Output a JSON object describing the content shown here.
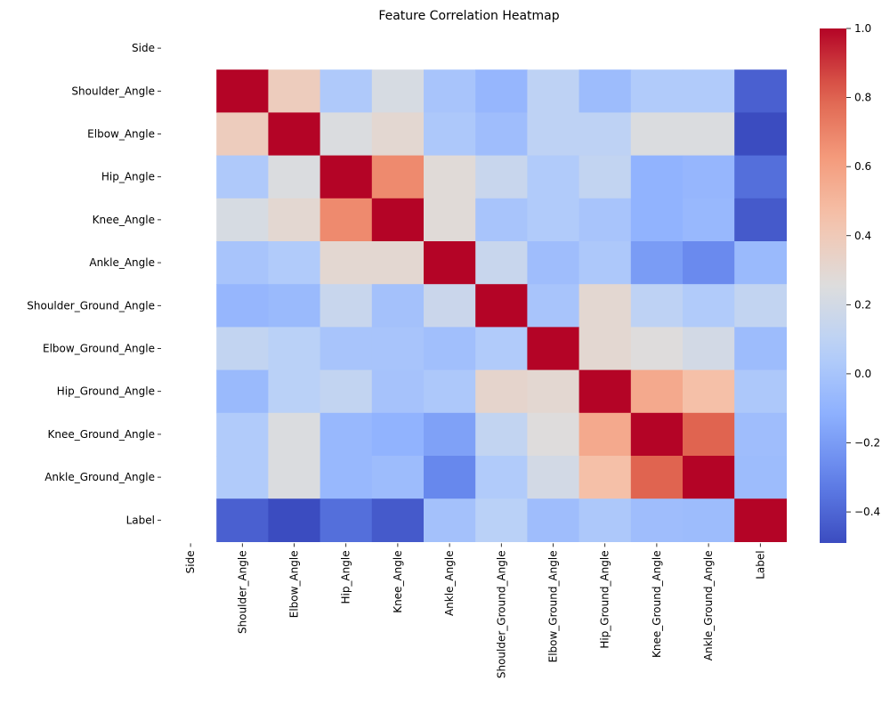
{
  "chart_data": {
    "type": "heatmap",
    "title": "Feature Correlation Heatmap",
    "xlabel": "",
    "ylabel": "",
    "colormap": "coolwarm",
    "x_categories": [
      "Side",
      "Shoulder_Angle",
      "Elbow_Angle",
      "Hip_Angle",
      "Knee_Angle",
      "Ankle_Angle",
      "Shoulder_Ground_Angle",
      "Elbow_Ground_Angle",
      "Hip_Ground_Angle",
      "Knee_Ground_Angle",
      "Ankle_Ground_Angle",
      "Label"
    ],
    "y_categories": [
      "Side",
      "Shoulder_Angle",
      "Elbow_Angle",
      "Hip_Angle",
      "Knee_Angle",
      "Ankle_Angle",
      "Shoulder_Ground_Angle",
      "Elbow_Ground_Angle",
      "Hip_Ground_Angle",
      "Knee_Ground_Angle",
      "Ankle_Ground_Angle",
      "Label"
    ],
    "values": [
      [
        null,
        null,
        null,
        null,
        null,
        null,
        null,
        null,
        null,
        null,
        null,
        null
      ],
      [
        null,
        1.0,
        0.38,
        0.03,
        0.22,
        0.0,
        -0.08,
        0.1,
        -0.05,
        0.04,
        0.04,
        -0.42
      ],
      [
        null,
        0.38,
        1.0,
        0.24,
        0.3,
        0.02,
        -0.04,
        0.1,
        0.1,
        0.24,
        0.24,
        -0.49
      ],
      [
        null,
        0.03,
        0.24,
        1.0,
        0.68,
        0.28,
        0.15,
        0.04,
        0.12,
        -0.1,
        -0.08,
        -0.37
      ],
      [
        null,
        0.22,
        0.3,
        0.68,
        1.0,
        0.28,
        0.0,
        0.04,
        0.0,
        -0.1,
        -0.07,
        -0.44
      ],
      [
        null,
        0.0,
        0.04,
        0.3,
        0.3,
        1.0,
        0.15,
        -0.04,
        0.02,
        -0.2,
        -0.27,
        -0.06
      ],
      [
        null,
        -0.08,
        -0.06,
        0.15,
        -0.02,
        0.16,
        1.0,
        0.0,
        0.3,
        0.1,
        0.04,
        0.12
      ],
      [
        null,
        0.12,
        0.08,
        0.0,
        0.0,
        -0.03,
        0.04,
        1.0,
        0.3,
        0.26,
        0.2,
        -0.05
      ],
      [
        null,
        -0.06,
        0.08,
        0.12,
        -0.01,
        0.02,
        0.32,
        0.3,
        1.0,
        0.56,
        0.46,
        0.02
      ],
      [
        null,
        0.04,
        0.24,
        -0.07,
        -0.1,
        -0.18,
        0.12,
        0.26,
        0.56,
        1.0,
        0.8,
        -0.04
      ],
      [
        null,
        0.04,
        0.24,
        -0.07,
        -0.05,
        -0.28,
        0.04,
        0.2,
        0.46,
        0.8,
        1.0,
        -0.05
      ],
      [
        null,
        -0.42,
        -0.49,
        -0.37,
        -0.44,
        -0.02,
        0.08,
        -0.04,
        0.02,
        -0.04,
        -0.05,
        1.0
      ]
    ],
    "colorbar": {
      "min": -0.49,
      "max": 1.0,
      "ticks": [
        1.0,
        0.8,
        0.6,
        0.4,
        0.2,
        0.0,
        -0.2,
        -0.4
      ],
      "tick_labels": [
        "1.0",
        "0.8",
        "0.6",
        "0.4",
        "0.2",
        "0.0",
        "−0.2",
        "−0.4"
      ]
    }
  }
}
